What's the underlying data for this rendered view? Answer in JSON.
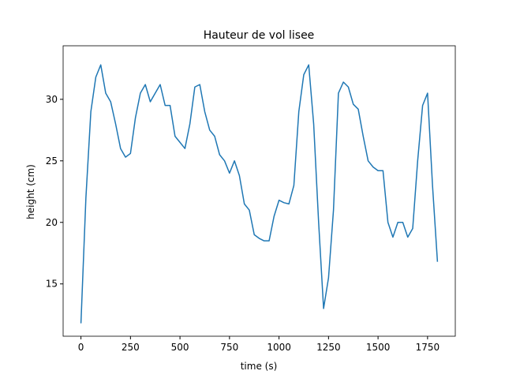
{
  "chart_data": {
    "type": "line",
    "title": "Hauteur de vol lisee",
    "x_label": "time (s)",
    "y_label": "height (cm)",
    "x": [
      0,
      25,
      50,
      75,
      100,
      125,
      150,
      175,
      200,
      225,
      250,
      275,
      300,
      325,
      350,
      375,
      400,
      425,
      450,
      475,
      500,
      525,
      550,
      575,
      600,
      625,
      650,
      675,
      700,
      725,
      750,
      775,
      800,
      825,
      850,
      875,
      900,
      925,
      950,
      975,
      1000,
      1025,
      1050,
      1075,
      1100,
      1125,
      1150,
      1175,
      1200,
      1225,
      1250,
      1275,
      1300,
      1325,
      1350,
      1375,
      1400,
      1425,
      1450,
      1475,
      1500,
      1525,
      1550,
      1575,
      1600,
      1625,
      1650,
      1675,
      1700,
      1725,
      1750,
      1775,
      1800
    ],
    "series": [
      {
        "color": "#1f77b4",
        "values": [
          11.8,
          22,
          29,
          31.8,
          32.8,
          30.5,
          29.8,
          28,
          26,
          25.3,
          25.6,
          28.5,
          30.5,
          31.2,
          29.8,
          30.5,
          31.2,
          29.5,
          29.5,
          27,
          26.5,
          26,
          28,
          31,
          31.2,
          29,
          27.5,
          27,
          25.5,
          25,
          24,
          25,
          23.8,
          21.5,
          21,
          19,
          18.7,
          18.5,
          18.5,
          20.5,
          21.8,
          21.6,
          21.5,
          23,
          29,
          32,
          32.8,
          28,
          20,
          13,
          15.5,
          21,
          30.5,
          31.4,
          31,
          29.6,
          29.2,
          27,
          25,
          24.5,
          24.2,
          24.2,
          20,
          18.8,
          20,
          20,
          18.8,
          19.5,
          25,
          29.5,
          30.5,
          23,
          16.8
        ]
      }
    ],
    "xlim": [
      -90,
      1890
    ],
    "ylim": [
      10.75,
      34.35
    ],
    "xticks": [
      0,
      250,
      500,
      750,
      1000,
      1250,
      1500,
      1750
    ],
    "yticks": [
      15,
      20,
      25,
      30
    ]
  }
}
